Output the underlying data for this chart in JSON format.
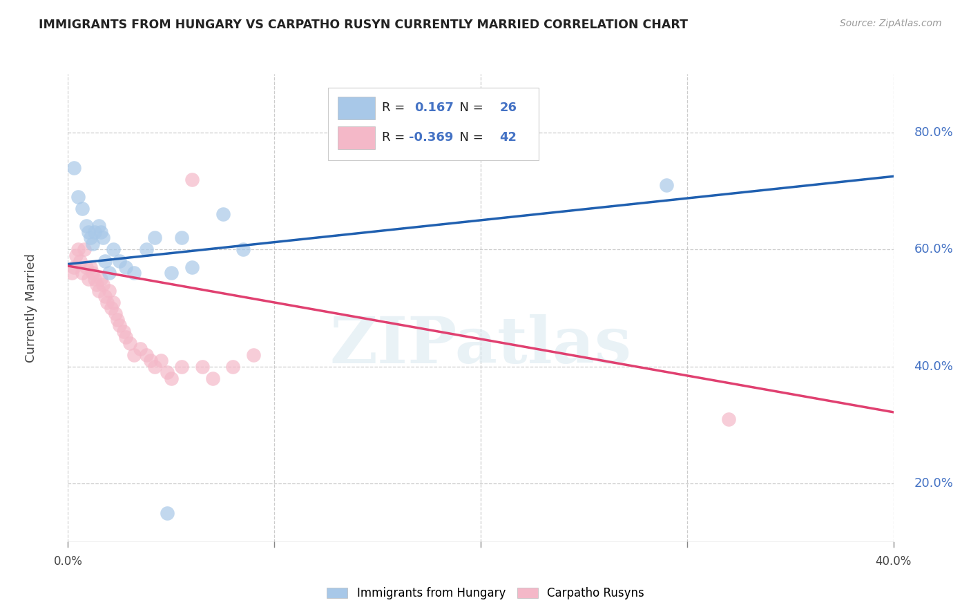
{
  "title": "IMMIGRANTS FROM HUNGARY VS CARPATHO RUSYN CURRENTLY MARRIED CORRELATION CHART",
  "source": "Source: ZipAtlas.com",
  "ylabel": "Currently Married",
  "xlim": [
    0.0,
    0.4
  ],
  "ylim": [
    0.1,
    0.9
  ],
  "yticks": [
    0.2,
    0.4,
    0.6,
    0.8
  ],
  "ytick_labels": [
    "20.0%",
    "40.0%",
    "60.0%",
    "80.0%"
  ],
  "xtick_labels": [
    "0.0%",
    "",
    "",
    "",
    "40.0%"
  ],
  "blue_color": "#a8c8e8",
  "pink_color": "#f4b8c8",
  "blue_line_color": "#2060b0",
  "pink_line_color": "#e04070",
  "legend_R_blue": "0.167",
  "legend_N_blue": "26",
  "legend_R_pink": "-0.369",
  "legend_N_pink": "42",
  "watermark": "ZIPatlas",
  "background_color": "#ffffff",
  "grid_color": "#cccccc",
  "blue_scatter_x": [
    0.003,
    0.005,
    0.007,
    0.009,
    0.01,
    0.011,
    0.012,
    0.013,
    0.015,
    0.016,
    0.017,
    0.018,
    0.02,
    0.022,
    0.025,
    0.028,
    0.032,
    0.038,
    0.042,
    0.05,
    0.055,
    0.06,
    0.075,
    0.085,
    0.29,
    0.048
  ],
  "blue_scatter_y": [
    0.74,
    0.69,
    0.67,
    0.64,
    0.63,
    0.62,
    0.61,
    0.63,
    0.64,
    0.63,
    0.62,
    0.58,
    0.56,
    0.6,
    0.58,
    0.57,
    0.56,
    0.6,
    0.62,
    0.56,
    0.62,
    0.57,
    0.66,
    0.6,
    0.71,
    0.15
  ],
  "pink_scatter_x": [
    0.002,
    0.003,
    0.004,
    0.005,
    0.006,
    0.007,
    0.008,
    0.009,
    0.01,
    0.011,
    0.012,
    0.013,
    0.014,
    0.015,
    0.016,
    0.017,
    0.018,
    0.019,
    0.02,
    0.021,
    0.022,
    0.023,
    0.024,
    0.025,
    0.027,
    0.028,
    0.03,
    0.032,
    0.035,
    0.038,
    0.04,
    0.042,
    0.045,
    0.048,
    0.05,
    0.055,
    0.06,
    0.065,
    0.07,
    0.08,
    0.09,
    0.32
  ],
  "pink_scatter_y": [
    0.56,
    0.57,
    0.59,
    0.6,
    0.58,
    0.56,
    0.6,
    0.57,
    0.55,
    0.57,
    0.56,
    0.55,
    0.54,
    0.53,
    0.55,
    0.54,
    0.52,
    0.51,
    0.53,
    0.5,
    0.51,
    0.49,
    0.48,
    0.47,
    0.46,
    0.45,
    0.44,
    0.42,
    0.43,
    0.42,
    0.41,
    0.4,
    0.41,
    0.39,
    0.38,
    0.4,
    0.72,
    0.4,
    0.38,
    0.4,
    0.42,
    0.31
  ],
  "blue_line_x": [
    0.0,
    0.4
  ],
  "blue_line_y": [
    0.575,
    0.725
  ],
  "pink_line_x": [
    0.0,
    0.4
  ],
  "pink_line_y": [
    0.572,
    0.322
  ]
}
